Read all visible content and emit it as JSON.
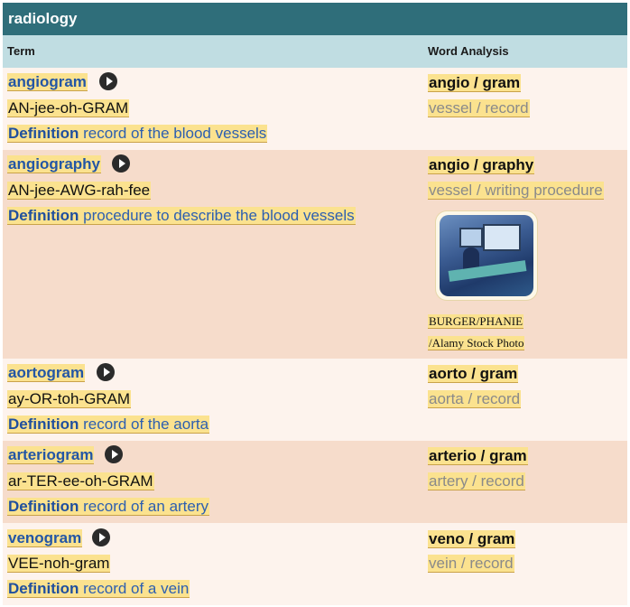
{
  "title": "radiology",
  "headers": {
    "term": "Term",
    "word_analysis": "Word Analysis"
  },
  "definition_label": "Definition",
  "rows": [
    {
      "term": "angiogram",
      "pronunciation": "AN-jee-oh-GRAM",
      "definition": "record of the blood vessels",
      "analysis": "angio  / gram",
      "translation": "vessel / record"
    },
    {
      "term": "angiography",
      "pronunciation": "AN-jee-AWG-rah-fee",
      "definition": "procedure to describe the blood vessels",
      "analysis": "angio / graphy",
      "translation": "vessel / writing procedure",
      "credit_line1": "BURGER/PHANIE",
      "credit_line2": "/Alamy Stock Photo"
    },
    {
      "term": "aortogram",
      "pronunciation": "ay-OR-toh-GRAM",
      "definition": "record of the aorta",
      "analysis": "aorto / gram",
      "translation": "aorta / record"
    },
    {
      "term": "arteriogram",
      "pronunciation": "ar-TER-ee-oh-GRAM",
      "definition": "record of an artery",
      "analysis": "arterio / gram",
      "translation": "artery  / record"
    },
    {
      "term": "venogram",
      "pronunciation": "VEE-noh-gram",
      "definition": "record of a vein",
      "analysis": "veno / gram",
      "translation": "vein  / record"
    }
  ]
}
